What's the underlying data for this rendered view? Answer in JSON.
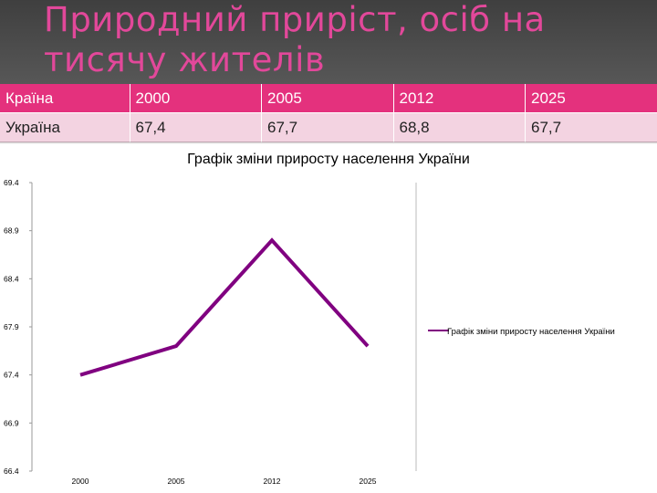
{
  "slide": {
    "title": "Природний приріст, осіб на тисячу жителів"
  },
  "table": {
    "headers": [
      "Країна",
      "2000",
      "2005",
      "2012",
      "2025"
    ],
    "rows": [
      [
        "Україна",
        "67,4",
        "67,7",
        "68,8",
        "67,7"
      ]
    ]
  },
  "colors": {
    "title": "#e2489a",
    "header_bg": "#4a4a4a",
    "table_header": "#e4317d",
    "table_row": "#f3d3e1",
    "series_line": "#800080"
  },
  "chart_data": {
    "type": "line",
    "title": "Графік зміни приросту населення України",
    "categories": [
      "2000",
      "2005",
      "2012",
      "2025"
    ],
    "series": [
      {
        "name": "Графік зміни приросту населення України",
        "values": [
          67.4,
          67.7,
          68.8,
          67.7
        ]
      }
    ],
    "ylim": [
      66.4,
      69.4
    ],
    "yticks": [
      "69.4",
      "68.9",
      "68.4",
      "67.9",
      "67.4",
      "66.9",
      "66.4"
    ],
    "grid": false,
    "legend": "right"
  }
}
